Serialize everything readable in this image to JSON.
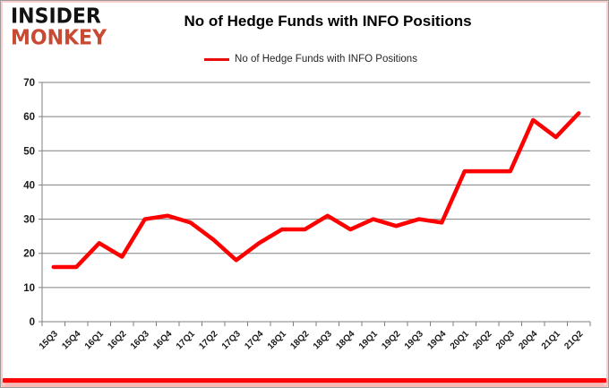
{
  "logo": {
    "line1": "INSIDER",
    "line2": "MONKEY"
  },
  "header": {
    "title": "No of Hedge Funds with INFO Positions"
  },
  "legend": {
    "label": "No of Hedge Funds with INFO Positions"
  },
  "chart_data": {
    "type": "line",
    "title": "No of Hedge Funds with INFO Positions",
    "categories": [
      "15Q3",
      "15Q4",
      "16Q1",
      "16Q2",
      "16Q3",
      "16Q4",
      "17Q1",
      "17Q2",
      "17Q3",
      "17Q4",
      "18Q1",
      "18Q2",
      "18Q3",
      "18Q4",
      "19Q1",
      "19Q2",
      "19Q3",
      "19Q4",
      "20Q1",
      "20Q2",
      "20Q3",
      "20Q4",
      "21Q1",
      "21Q2"
    ],
    "series": [
      {
        "name": "No of Hedge Funds with INFO Positions",
        "values": [
          16,
          16,
          23,
          19,
          30,
          31,
          29,
          24,
          18,
          23,
          27,
          27,
          31,
          27,
          30,
          28,
          30,
          29,
          44,
          44,
          44,
          59,
          54,
          61
        ]
      }
    ],
    "ylim": [
      0,
      70
    ],
    "yticks": [
      0,
      10,
      20,
      30,
      40,
      50,
      60,
      70
    ],
    "grid": true,
    "legend_position": "top",
    "colors": {
      "line": "#fe0000",
      "grid": "#808080",
      "axis": "#808080",
      "tick_label": "#1a1a1a",
      "accent_logo_red": "#c94a33",
      "bottom_bar": "#fb0707"
    }
  }
}
